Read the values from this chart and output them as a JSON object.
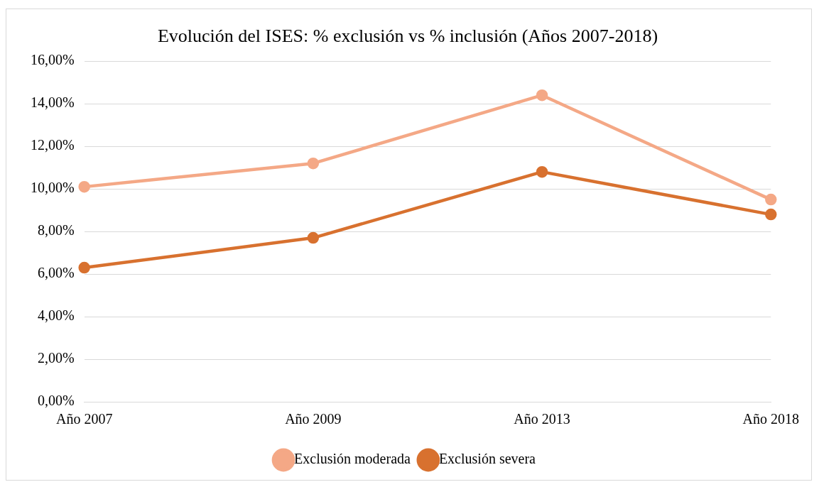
{
  "chart_data": {
    "type": "line",
    "title": "Evolución del ISES: % exclusión vs % inclusión (Años 2007-2018)",
    "categories": [
      "Año 2007",
      "Año 2009",
      "Año 2013",
      "Año 2018"
    ],
    "series": [
      {
        "name": "Exclusión moderada",
        "color": "#f4a886",
        "values": [
          10.1,
          11.2,
          14.4,
          9.5
        ]
      },
      {
        "name": "Exclusión severa",
        "color": "#d8712f",
        "values": [
          6.3,
          7.7,
          10.8,
          8.8
        ]
      }
    ],
    "ylim": [
      0,
      16
    ],
    "yticks": [
      {
        "value": 0,
        "label": "0,00%"
      },
      {
        "value": 2,
        "label": "2,00%"
      },
      {
        "value": 4,
        "label": "4,00%"
      },
      {
        "value": 6,
        "label": "6,00%"
      },
      {
        "value": 8,
        "label": "8,00%"
      },
      {
        "value": 10,
        "label": "10,00%"
      },
      {
        "value": 12,
        "label": "12,00%"
      },
      {
        "value": 14,
        "label": "14,00%"
      },
      {
        "value": 16,
        "label": "16,00%"
      }
    ],
    "grid": "y",
    "legend": "bottom",
    "marker": "circle",
    "line_style": "solid"
  }
}
